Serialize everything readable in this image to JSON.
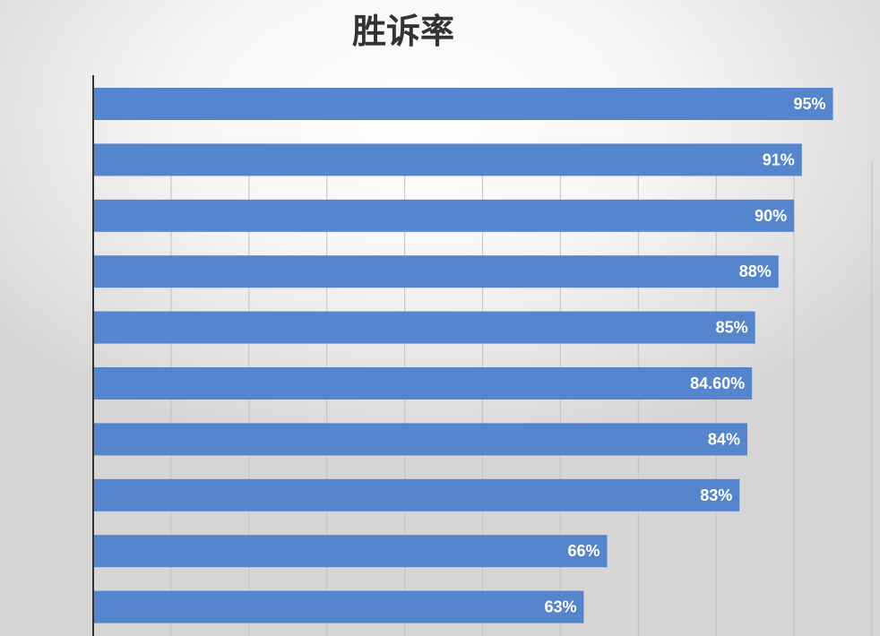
{
  "chart_data": {
    "type": "bar",
    "orientation": "horizontal",
    "title": "胜诉率",
    "values": [
      95,
      91,
      90,
      88,
      85,
      84.6,
      84,
      83,
      66,
      63
    ],
    "data_labels": [
      "95%",
      "91%",
      "90%",
      "88%",
      "85%",
      "84.60%",
      "84%",
      "83%",
      "66%",
      "63%"
    ],
    "xlim": [
      0,
      100
    ],
    "grid": true,
    "bar_color": "#5585cc",
    "label_color": "#ffffff"
  }
}
